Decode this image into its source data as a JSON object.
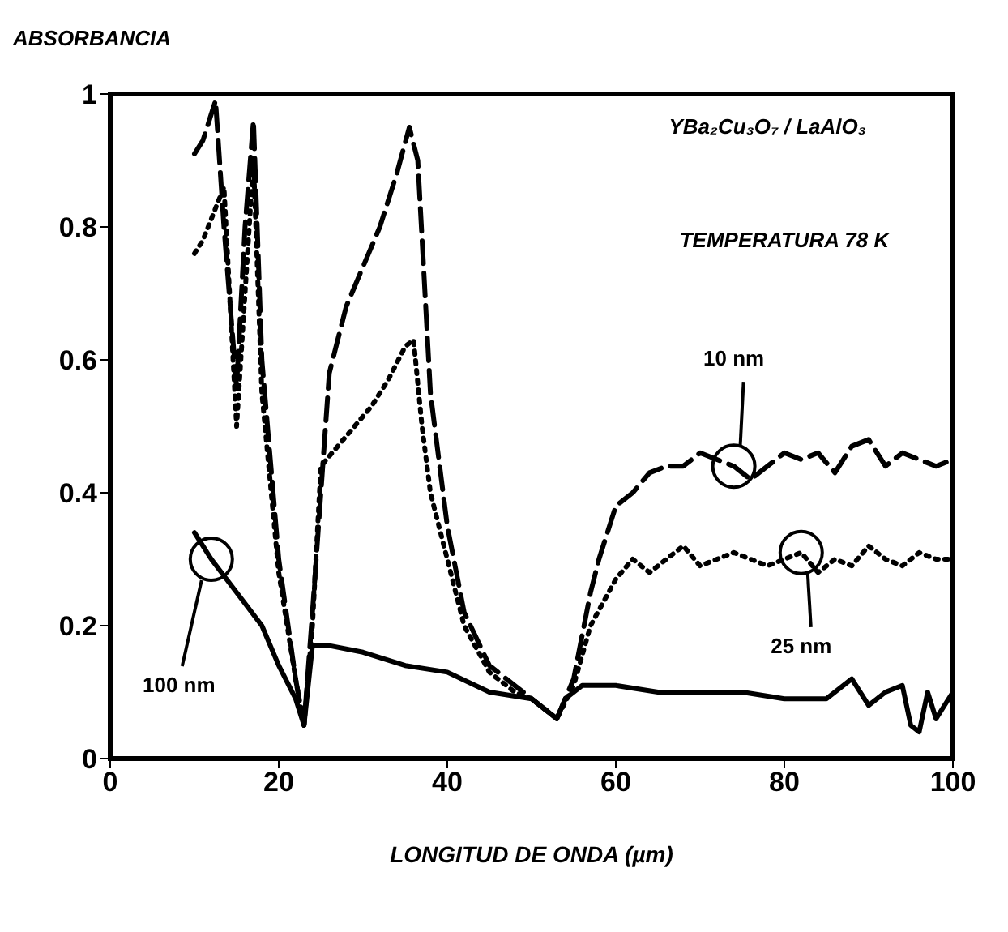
{
  "chart_data": {
    "type": "line",
    "ylabel": "ABSORBANCIA",
    "xlabel": "LONGITUD DE ONDA  (µm)",
    "annotations": [
      "YBa₂Cu₃O₇ / LaAlO₃",
      "TEMPERATURA 78 K"
    ],
    "xlim": [
      0,
      100
    ],
    "xticks": [
      0,
      20,
      40,
      60,
      80,
      100
    ],
    "ylim": [
      0,
      1
    ],
    "yticks": [
      0,
      0.2,
      0.4,
      0.6,
      0.8,
      1
    ],
    "grid": false,
    "legend": false,
    "marker": "none",
    "series": [
      {
        "name": "10 nm",
        "color": "#000000",
        "line_style": "dashed",
        "x": [
          10,
          11,
          12.5,
          13.5,
          15,
          16,
          17,
          18,
          20,
          22,
          23,
          24,
          26,
          28,
          30,
          32,
          34,
          35.5,
          36.5,
          38,
          40,
          42,
          45,
          48,
          50,
          52,
          53,
          55,
          57,
          58,
          60,
          62,
          64,
          66,
          68,
          70,
          72,
          74,
          76,
          78,
          80,
          82,
          84,
          86,
          88,
          90,
          92,
          94,
          96,
          98,
          100
        ],
        "values": [
          0.91,
          0.93,
          0.99,
          0.8,
          0.56,
          0.8,
          0.96,
          0.6,
          0.3,
          0.12,
          0.05,
          0.22,
          0.58,
          0.68,
          0.74,
          0.8,
          0.88,
          0.95,
          0.9,
          0.55,
          0.35,
          0.22,
          0.14,
          0.11,
          0.09,
          0.07,
          0.06,
          0.12,
          0.25,
          0.3,
          0.38,
          0.4,
          0.43,
          0.44,
          0.44,
          0.46,
          0.45,
          0.44,
          0.42,
          0.44,
          0.46,
          0.45,
          0.46,
          0.43,
          0.47,
          0.48,
          0.44,
          0.46,
          0.45,
          0.44,
          0.45
        ]
      },
      {
        "name": "25 nm",
        "color": "#000000",
        "line_style": "dotted",
        "x": [
          10,
          11,
          13.5,
          15,
          16,
          17,
          18,
          20,
          22,
          23,
          24,
          25,
          27,
          29,
          31,
          33,
          35,
          36,
          37,
          38,
          40,
          42,
          45,
          48,
          50,
          52,
          53,
          55,
          57,
          60,
          62,
          64,
          66,
          68,
          70,
          72,
          74,
          76,
          78,
          80,
          82,
          84,
          86,
          88,
          90,
          92,
          94,
          96,
          98,
          100
        ],
        "values": [
          0.76,
          0.78,
          0.86,
          0.5,
          0.7,
          0.9,
          0.55,
          0.28,
          0.12,
          0.05,
          0.2,
          0.44,
          0.47,
          0.5,
          0.53,
          0.57,
          0.62,
          0.63,
          0.5,
          0.4,
          0.3,
          0.2,
          0.13,
          0.1,
          0.09,
          0.07,
          0.06,
          0.11,
          0.2,
          0.27,
          0.3,
          0.28,
          0.3,
          0.32,
          0.29,
          0.3,
          0.31,
          0.3,
          0.29,
          0.3,
          0.31,
          0.28,
          0.3,
          0.29,
          0.32,
          0.3,
          0.29,
          0.31,
          0.3,
          0.3
        ]
      },
      {
        "name": "100 nm",
        "color": "#000000",
        "line_style": "solid",
        "x": [
          10,
          12,
          15,
          18,
          20,
          22,
          23,
          24,
          26,
          30,
          35,
          40,
          45,
          50,
          52,
          53,
          54,
          56,
          60,
          65,
          70,
          75,
          80,
          85,
          88,
          90,
          92,
          94,
          95,
          96,
          97,
          98,
          100
        ],
        "values": [
          0.34,
          0.3,
          0.25,
          0.2,
          0.14,
          0.09,
          0.05,
          0.17,
          0.17,
          0.16,
          0.14,
          0.13,
          0.1,
          0.09,
          0.07,
          0.06,
          0.09,
          0.11,
          0.11,
          0.1,
          0.1,
          0.1,
          0.09,
          0.09,
          0.12,
          0.08,
          0.1,
          0.11,
          0.05,
          0.04,
          0.1,
          0.06,
          0.1
        ]
      }
    ]
  }
}
